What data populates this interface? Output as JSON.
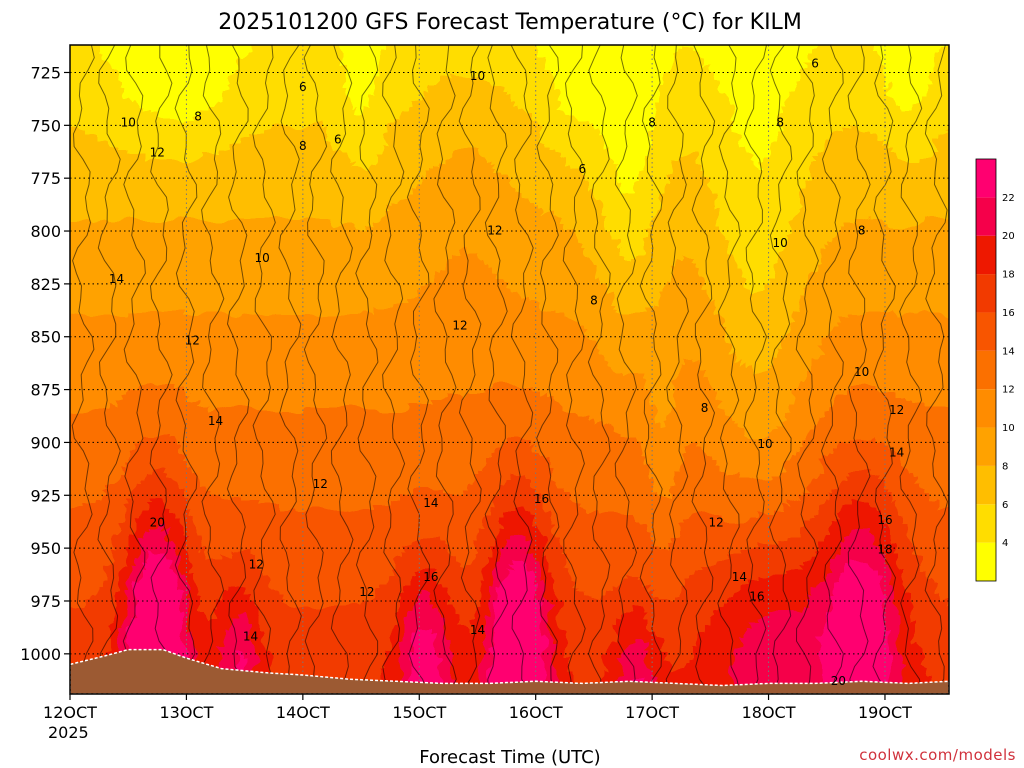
{
  "chart_data": {
    "type": "heatmap",
    "title": "2025101200 GFS Forecast Temperature (°C) for KILM",
    "xlabel": "Forecast Time (UTC)",
    "ylabel": "",
    "x_ticks": [
      "12OCT",
      "13OCT",
      "14OCT",
      "15OCT",
      "16OCT",
      "17OCT",
      "18OCT",
      "19OCT"
    ],
    "x_tick_values": [
      12.0,
      13.0,
      14.0,
      15.0,
      16.0,
      17.0,
      18.0,
      19.0
    ],
    "x_year_label": "2025",
    "xlim": [
      12.0,
      19.55
    ],
    "y_ticks": [
      725,
      750,
      775,
      800,
      825,
      850,
      875,
      900,
      925,
      950,
      975,
      1000
    ],
    "ylim": [
      1019,
      712
    ],
    "y_axis": "pressure (hPa), inverted",
    "grid": true,
    "colorbar": {
      "labels": [
        4,
        6,
        8,
        10,
        12,
        14,
        16,
        18,
        20,
        22
      ],
      "min": 2,
      "max": 24,
      "step": 2,
      "colors": [
        "#ffff00",
        "#ffdd00",
        "#ffbe00",
        "#ffa200",
        "#ff8c00",
        "#fb7000",
        "#f85500",
        "#f23a00",
        "#ee1800",
        "#f5004a",
        "#ff0070"
      ]
    },
    "ground_color": "#9c5a33",
    "series": [
      {
        "times": [
          12.0,
          12.6,
          13.0,
          13.6,
          14.0,
          14.5,
          15.0,
          15.6,
          16.0,
          16.5,
          17.0,
          17.5,
          18.0,
          18.6,
          19.0,
          19.55
        ],
        "levels": [
          725,
          750,
          775,
          800,
          825,
          850,
          875,
          900,
          925,
          950,
          975,
          1000
        ]
      }
    ],
    "contour_labels": [
      {
        "value": 6,
        "x": 14.0,
        "y": 732
      },
      {
        "value": 6,
        "x": 14.3,
        "y": 757
      },
      {
        "value": 6,
        "x": 16.4,
        "y": 771
      },
      {
        "value": 6,
        "x": 18.4,
        "y": 721
      },
      {
        "value": 8,
        "x": 13.1,
        "y": 746
      },
      {
        "value": 8,
        "x": 14.0,
        "y": 760
      },
      {
        "value": 8,
        "x": 17.0,
        "y": 749
      },
      {
        "value": 8,
        "x": 18.1,
        "y": 749
      },
      {
        "value": 8,
        "x": 16.5,
        "y": 833
      },
      {
        "value": 8,
        "x": 17.45,
        "y": 884
      },
      {
        "value": 8,
        "x": 18.8,
        "y": 800
      },
      {
        "value": 10,
        "x": 12.5,
        "y": 749
      },
      {
        "value": 10,
        "x": 15.5,
        "y": 727
      },
      {
        "value": 10,
        "x": 13.65,
        "y": 813
      },
      {
        "value": 10,
        "x": 18.1,
        "y": 806
      },
      {
        "value": 10,
        "x": 17.97,
        "y": 901
      },
      {
        "value": 10,
        "x": 18.8,
        "y": 867
      },
      {
        "value": 12,
        "x": 12.75,
        "y": 763
      },
      {
        "value": 12,
        "x": 15.65,
        "y": 800
      },
      {
        "value": 12,
        "x": 15.35,
        "y": 845
      },
      {
        "value": 12,
        "x": 13.05,
        "y": 852
      },
      {
        "value": 12,
        "x": 14.15,
        "y": 920
      },
      {
        "value": 12,
        "x": 13.6,
        "y": 958
      },
      {
        "value": 12,
        "x": 14.55,
        "y": 971
      },
      {
        "value": 12,
        "x": 17.55,
        "y": 938
      },
      {
        "value": 12,
        "x": 19.1,
        "y": 885
      },
      {
        "value": 14,
        "x": 12.4,
        "y": 823
      },
      {
        "value": 14,
        "x": 13.25,
        "y": 890
      },
      {
        "value": 14,
        "x": 13.55,
        "y": 992
      },
      {
        "value": 14,
        "x": 15.1,
        "y": 929
      },
      {
        "value": 14,
        "x": 15.5,
        "y": 989
      },
      {
        "value": 14,
        "x": 17.75,
        "y": 964
      },
      {
        "value": 14,
        "x": 19.1,
        "y": 905
      },
      {
        "value": 16,
        "x": 15.1,
        "y": 964
      },
      {
        "value": 16,
        "x": 16.05,
        "y": 927
      },
      {
        "value": 16,
        "x": 17.9,
        "y": 973
      },
      {
        "value": 16,
        "x": 19.0,
        "y": 937
      },
      {
        "value": 18,
        "x": 19.0,
        "y": 951
      },
      {
        "value": 20,
        "x": 12.75,
        "y": 938
      },
      {
        "value": 20,
        "x": 18.6,
        "y": 1013
      }
    ]
  },
  "credit": "coolwx.com/models"
}
